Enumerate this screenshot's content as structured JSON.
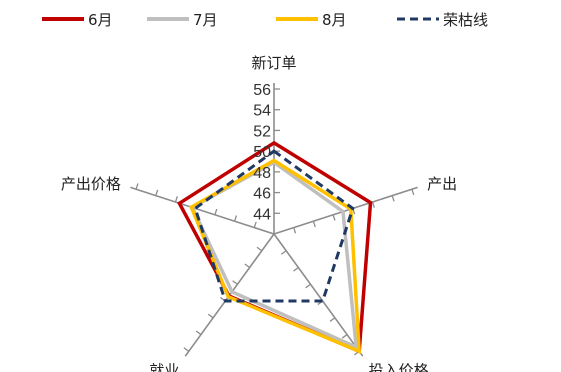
{
  "chart_data": {
    "type": "radar",
    "axes": [
      "新订单",
      "产出",
      "投入价格",
      "就业",
      "产出价格"
    ],
    "rlim": [
      42,
      56
    ],
    "ticks": [
      44,
      46,
      48,
      50,
      52,
      54,
      56
    ],
    "tick_labels": [
      "44",
      "46",
      "48",
      "50",
      "52",
      "54",
      "56"
    ],
    "grid": false,
    "legend_position": "top",
    "series": [
      {
        "name": "6月",
        "color": "#c00000",
        "style": "solid",
        "values": [
          50.8,
          51.8,
          56.0,
          49.4,
          51.6
        ]
      },
      {
        "name": "7月",
        "color": "#bfbfbf",
        "style": "solid",
        "values": [
          48.9,
          49.0,
          55.5,
          48.9,
          50.3
        ]
      },
      {
        "name": "8月",
        "color": "#ffc000",
        "style": "solid",
        "values": [
          49.1,
          49.8,
          56.0,
          49.5,
          50.4
        ]
      },
      {
        "name": "荣枯线",
        "color": "#1f3864",
        "style": "dashed",
        "values": [
          50,
          50,
          50,
          50,
          50
        ]
      }
    ]
  }
}
